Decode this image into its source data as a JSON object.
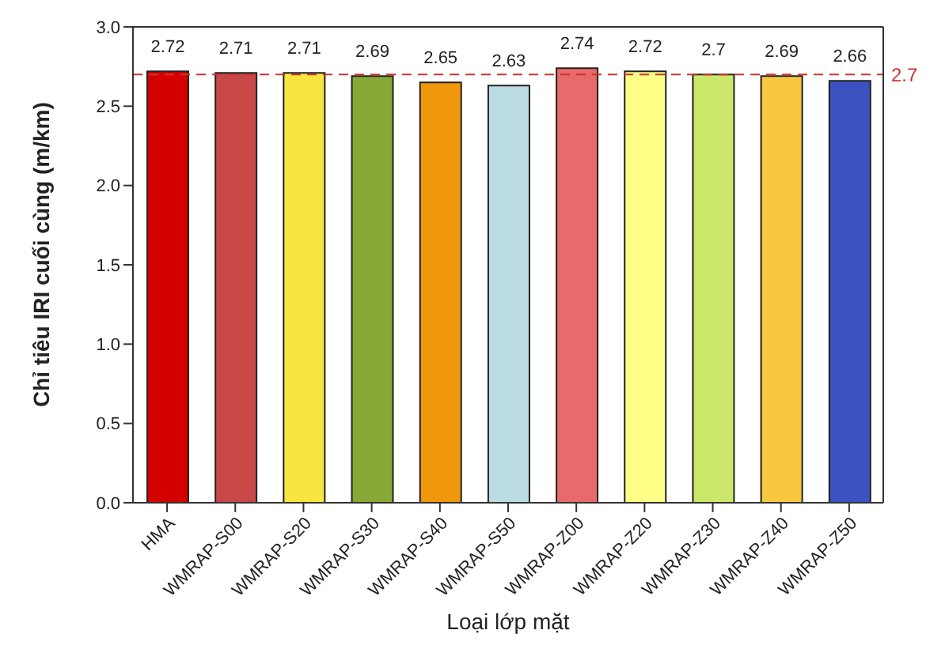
{
  "chart_data": {
    "type": "bar",
    "xlabel": "Loại lớp mặt",
    "ylabel": "Chỉ tiêu IRI cuối cùng (m/km)",
    "categories": [
      "HMA",
      "WMRAP-S00",
      "WMRAP-S20",
      "WMRAP-S30",
      "WMRAP-S40",
      "WMRAP-S50",
      "WMRAP-Z00",
      "WMRAP-Z20",
      "WMRAP-Z30",
      "WMRAP-Z40",
      "WMRAP-Z50"
    ],
    "values": [
      2.72,
      2.71,
      2.71,
      2.69,
      2.65,
      2.63,
      2.74,
      2.72,
      2.7,
      2.69,
      2.66
    ],
    "colors": [
      "#d40000",
      "#c84848",
      "#f8e640",
      "#88a838",
      "#f0960a",
      "#bcdce4",
      "#e86a6a",
      "#ffff88",
      "#cce86a",
      "#f8c840",
      "#3c52c0"
    ],
    "ylim": [
      0,
      3
    ],
    "yticks": [
      {
        "value": 0,
        "label": "0.0"
      },
      {
        "value": 0.5,
        "label": "0.5"
      },
      {
        "value": 1,
        "label": "1.0"
      },
      {
        "value": 1.5,
        "label": "1.5"
      },
      {
        "value": 2,
        "label": "2.0"
      },
      {
        "value": 2.5,
        "label": "2.5"
      },
      {
        "value": 3,
        "label": "3.0"
      }
    ],
    "ref_lines": [
      {
        "axis": "y",
        "value": 2.7,
        "label": "2.7",
        "color": "#d03030",
        "line_style": "dashed"
      }
    ],
    "data_labels": true,
    "grid": false
  }
}
